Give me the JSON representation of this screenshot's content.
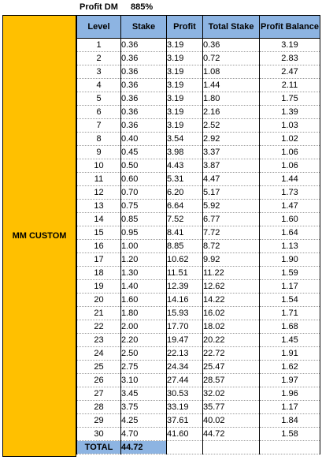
{
  "top": {
    "profit_label": "Profit DM",
    "profit_value": "885%"
  },
  "side_label": "MM CUSTOM",
  "headers": [
    "Level",
    "Stake",
    "Profit",
    "Total Stake",
    "Profit Balance"
  ],
  "rows": [
    [
      "1",
      "0.36",
      "3.19",
      "0.36",
      "3.19"
    ],
    [
      "2",
      "0.36",
      "3.19",
      "0.72",
      "2.83"
    ],
    [
      "3",
      "0.36",
      "3.19",
      "1.08",
      "2.47"
    ],
    [
      "4",
      "0.36",
      "3.19",
      "1.44",
      "2.11"
    ],
    [
      "5",
      "0.36",
      "3.19",
      "1.80",
      "1.75"
    ],
    [
      "6",
      "0.36",
      "3.19",
      "2.16",
      "1.39"
    ],
    [
      "7",
      "0.36",
      "3.19",
      "2.52",
      "1.03"
    ],
    [
      "8",
      "0.40",
      "3.54",
      "2.92",
      "1.02"
    ],
    [
      "9",
      "0.45",
      "3.98",
      "3.37",
      "1.06"
    ],
    [
      "10",
      "0.50",
      "4.43",
      "3.87",
      "1.06"
    ],
    [
      "11",
      "0.60",
      "5.31",
      "4.47",
      "1.44"
    ],
    [
      "12",
      "0.70",
      "6.20",
      "5.17",
      "1.73"
    ],
    [
      "13",
      "0.75",
      "6.64",
      "5.92",
      "1.47"
    ],
    [
      "14",
      "0.85",
      "7.52",
      "6.77",
      "1.60"
    ],
    [
      "15",
      "0.95",
      "8.41",
      "7.72",
      "1.64"
    ],
    [
      "16",
      "1.00",
      "8.85",
      "8.72",
      "1.13"
    ],
    [
      "17",
      "1.20",
      "10.62",
      "9.92",
      "1.90"
    ],
    [
      "18",
      "1.30",
      "11.51",
      "11.22",
      "1.59"
    ],
    [
      "19",
      "1.40",
      "12.39",
      "12.62",
      "1.17"
    ],
    [
      "20",
      "1.60",
      "14.16",
      "14.22",
      "1.54"
    ],
    [
      "21",
      "1.80",
      "15.93",
      "16.02",
      "1.71"
    ],
    [
      "22",
      "2.00",
      "17.70",
      "18.02",
      "1.68"
    ],
    [
      "23",
      "2.20",
      "19.47",
      "20.22",
      "1.45"
    ],
    [
      "24",
      "2.50",
      "22.13",
      "22.72",
      "1.91"
    ],
    [
      "25",
      "2.75",
      "24.34",
      "25.47",
      "1.62"
    ],
    [
      "26",
      "3.10",
      "27.44",
      "28.57",
      "1.97"
    ],
    [
      "27",
      "3.45",
      "30.53",
      "32.02",
      "1.96"
    ],
    [
      "28",
      "3.75",
      "33.19",
      "35.77",
      "1.17"
    ],
    [
      "29",
      "4.25",
      "37.61",
      "40.02",
      "1.84"
    ],
    [
      "30",
      "4.70",
      "41.60",
      "44.72",
      "1.58"
    ]
  ],
  "total": {
    "label": "TOTAL",
    "value": "44.72"
  },
  "colors": {
    "header_bg": "#8db4e2",
    "side_bg": "#ffc000"
  }
}
